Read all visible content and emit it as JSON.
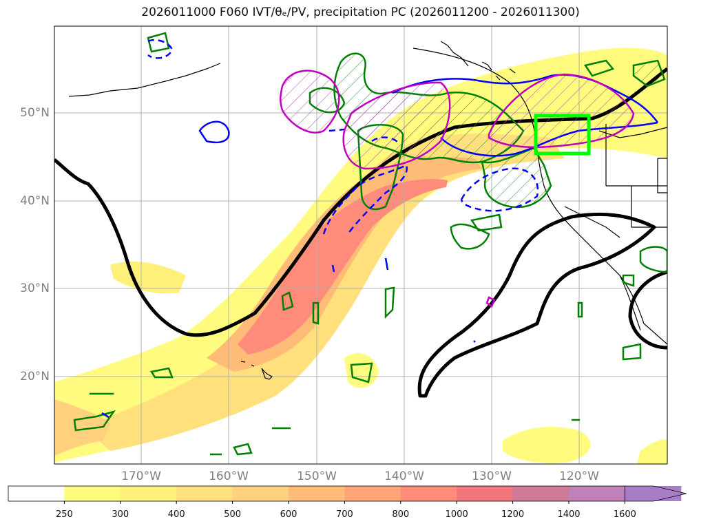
{
  "title": "2026011000 F060 IVT/θₑ/PV, precipitation PC (2026011200 - 2026011300)",
  "lon_labels": [
    "170°W",
    "160°W",
    "150°W",
    "140°W",
    "130°W",
    "120°W"
  ],
  "lat_labels": [
    "50°N",
    "40°N",
    "30°N",
    "20°N"
  ],
  "colorbar": {
    "ticks": [
      "250",
      "300",
      "400",
      "500",
      "600",
      "700",
      "800",
      "1000",
      "1200",
      "1400",
      "1600"
    ],
    "colors": [
      "#ffffff",
      "#fffb7e",
      "#fff07a",
      "#ffe07c",
      "#ffd17e",
      "#ffbb78",
      "#ffa578",
      "#ff8c7a",
      "#f0777c",
      "#d07a9a",
      "#c080b8",
      "#a87fc6"
    ]
  },
  "colors": {
    "box": "#00ff00",
    "theta_contour": "#000000",
    "pv_pos": "#008000",
    "pv_neg": "#0000ff",
    "pv_magenta": "#c000c0"
  }
}
